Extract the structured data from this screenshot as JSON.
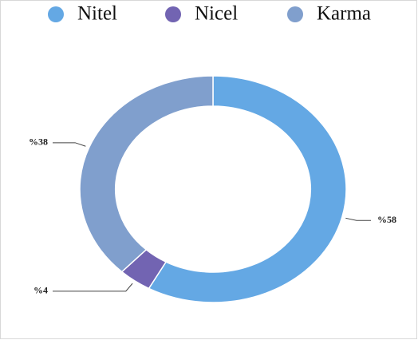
{
  "chart_data": {
    "type": "donut",
    "categories": [
      "Nitel",
      "Nicel",
      "Karma"
    ],
    "values": [
      58,
      4,
      38
    ],
    "value_labels": [
      "%58",
      "%4",
      "%38"
    ],
    "colors": [
      "#64a8e4",
      "#7264b2",
      "#809fcd"
    ],
    "legend": "top"
  }
}
